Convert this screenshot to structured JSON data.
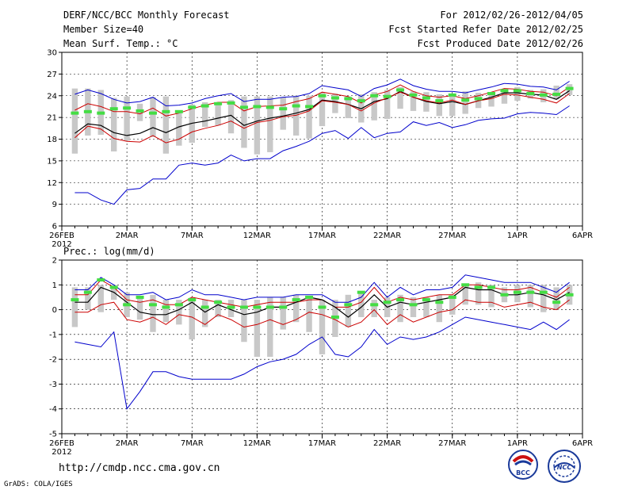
{
  "header": {
    "title": "DERF/NCC/BCC Monthly Forecast",
    "member_size": "Member Size=40",
    "variable_top": "Mean Surf. Temp.: °C",
    "period": "For 2012/02/26-2012/04/05",
    "refer_date": "Fcst Started Refer Date 2012/02/25",
    "produced_date": "Fcst Produced Date 2012/02/26"
  },
  "footer": {
    "url": "http://cmdp.ncc.cma.gov.cn",
    "grads": "GrADS: COLA/IGES"
  },
  "logos": {
    "bcc": "BCC",
    "ncc": "NCC"
  },
  "colors": {
    "max": "#0000cc",
    "min": "#0000cc",
    "upper": "#cc0000",
    "lower": "#cc0000",
    "mean": "#000000",
    "median": "#44dd44",
    "box": "#c8c8c8"
  },
  "chart_data": [
    {
      "type": "line",
      "title": "Mean Surf. Temp.: °C",
      "ylim": [
        6,
        30
      ],
      "yticks": [
        "6",
        "9",
        "12",
        "15",
        "18",
        "21",
        "24",
        "27",
        "30"
      ],
      "xticks": [
        "26FEB",
        "2MAR",
        "7MAR",
        "12MAR",
        "17MAR",
        "22MAR",
        "27MAR",
        "1APR",
        "6APR"
      ],
      "xtick_sub": "2012",
      "x_day_range": [
        0,
        40
      ],
      "x": [
        1,
        2,
        3,
        4,
        5,
        6,
        7,
        8,
        9,
        10,
        11,
        12,
        13,
        14,
        15,
        16,
        17,
        18,
        19,
        20,
        21,
        22,
        23,
        24,
        25,
        26,
        27,
        28,
        29,
        30,
        31,
        32,
        33,
        34,
        35,
        36,
        37,
        38,
        39
      ],
      "series": [
        {
          "name": "max",
          "values": [
            24.2,
            24.8,
            24.3,
            23.5,
            23,
            23.2,
            23.8,
            22.6,
            22.7,
            23,
            23.6,
            24,
            24.3,
            23.2,
            23.5,
            23.5,
            23.8,
            23.9,
            24.3,
            25.4,
            25.1,
            24.8,
            23.9,
            25,
            25.5,
            26.3,
            25.4,
            24.9,
            24.6,
            24.6,
            24.4,
            24.8,
            25.2,
            25.7,
            25.6,
            25.3,
            25.2,
            24.8,
            26
          ]
        },
        {
          "name": "upper",
          "values": [
            22,
            22.9,
            22.5,
            21.8,
            21.8,
            21.5,
            22.3,
            21.2,
            21.6,
            22.2,
            22.7,
            23.1,
            23.1,
            21.9,
            22.5,
            22.6,
            22.7,
            23.2,
            23.6,
            24.5,
            24.2,
            23.9,
            23,
            24.1,
            24.6,
            25.5,
            24.6,
            24,
            23.8,
            24,
            23.6,
            24,
            24.5,
            25,
            24.9,
            24.6,
            24.5,
            24,
            25.2
          ]
        },
        {
          "name": "mean",
          "values": [
            18.8,
            20.1,
            19.9,
            18.9,
            18.5,
            18.8,
            19.6,
            18.9,
            19.7,
            20.2,
            20.5,
            20.9,
            21.3,
            19.9,
            20.5,
            20.9,
            21.2,
            21.6,
            22.1,
            23.4,
            23.2,
            22.8,
            22.2,
            23.2,
            23.6,
            24.6,
            23.8,
            23.2,
            22.9,
            23.2,
            22.8,
            23.3,
            23.8,
            24.4,
            24.4,
            24.2,
            24.1,
            23.5,
            24.7
          ]
        },
        {
          "name": "lower",
          "values": [
            18.2,
            19.8,
            19.4,
            18.1,
            17.7,
            17.6,
            18.5,
            17.5,
            18,
            19,
            19.5,
            19.9,
            20.5,
            19.5,
            20.3,
            20.6,
            21.1,
            21.3,
            21.9,
            23.3,
            23.1,
            22.8,
            21.9,
            23,
            23.7,
            24.5,
            23.8,
            23.3,
            23,
            23.4,
            22.8,
            23.3,
            23.6,
            24.2,
            24.1,
            23.8,
            23.5,
            23,
            24.3
          ]
        },
        {
          "name": "min",
          "values": [
            10.6,
            10.6,
            9.6,
            9,
            11,
            11.2,
            12.5,
            12.5,
            14.4,
            14.7,
            14.4,
            14.7,
            15.8,
            15,
            15.3,
            15.3,
            16.4,
            17,
            17.7,
            18.8,
            19.2,
            18.1,
            19.6,
            18.2,
            18.8,
            19,
            20.4,
            19.9,
            20.3,
            19.6,
            20,
            20.6,
            20.8,
            20.9,
            21.5,
            21.7,
            21.6,
            21.4,
            22.6
          ]
        },
        {
          "name": "median",
          "values": [
            21.6,
            21.8,
            21.6,
            22.2,
            22.3,
            21.9,
            21.6,
            21.8,
            21.8,
            22.4,
            22.6,
            22.9,
            23,
            22.4,
            22.5,
            22.4,
            22.2,
            22.6,
            22.5,
            24,
            23.7,
            23.6,
            23.3,
            24,
            23.9,
            24.8,
            24.1,
            23.7,
            23.3,
            24.1,
            23.4,
            23.6,
            24.3,
            24.7,
            24.7,
            24.3,
            24.1,
            24.2,
            25
          ]
        }
      ],
      "box_low": [
        16,
        18.5,
        18.6,
        16.3,
        17.8,
        20.5,
        18.3,
        16,
        17.1,
        17.5,
        19.7,
        19.9,
        18.8,
        16.8,
        15.9,
        16.2,
        19.3,
        18.5,
        18.1,
        19.8,
        21.6,
        20.9,
        20.3,
        20.6,
        20.8,
        22.2,
        21.9,
        21.8,
        21.2,
        21.2,
        21.5,
        22.3,
        22.5,
        22.9,
        23.3,
        23.6,
        23.1,
        23.5,
        24.1
      ],
      "box_high": [
        25,
        25,
        24.8,
        23.7,
        23.9,
        22.9,
        23.8,
        23.9,
        22,
        22.8,
        23.1,
        23.1,
        23.4,
        23.9,
        23.9,
        23.9,
        23.8,
        24,
        24,
        24.4,
        24.3,
        23.9,
        24.2,
        24.5,
        24.8,
        25.2,
        24.6,
        24.5,
        24.2,
        24.1,
        24.6,
        24.4,
        24.3,
        24.8,
        25.2,
        24.8,
        24.9,
        25.4,
        25.6
      ]
    },
    {
      "type": "line",
      "title": "Prec.: log(mm/d)",
      "ylim": [
        -5,
        2
      ],
      "yticks": [
        "-5",
        "-4",
        "-3",
        "-2",
        "-1",
        "0",
        "1",
        "2"
      ],
      "xticks": [
        "26FEB",
        "2MAR",
        "7MAR",
        "12MAR",
        "17MAR",
        "22MAR",
        "27MAR",
        "1APR",
        "6APR"
      ],
      "xtick_sub": "2012",
      "x_day_range": [
        0,
        40
      ],
      "x": [
        1,
        2,
        3,
        4,
        5,
        6,
        7,
        8,
        9,
        10,
        11,
        12,
        13,
        14,
        15,
        16,
        17,
        18,
        19,
        20,
        21,
        22,
        23,
        24,
        25,
        26,
        27,
        28,
        29,
        30,
        31,
        32,
        33,
        34,
        35,
        36,
        37,
        38,
        39
      ],
      "series": [
        {
          "name": "max",
          "values": [
            0.8,
            0.8,
            1.3,
            1,
            0.6,
            0.6,
            0.7,
            0.4,
            0.5,
            0.8,
            0.6,
            0.6,
            0.5,
            0.4,
            0.5,
            0.5,
            0.5,
            0.6,
            0.6,
            0.6,
            0.3,
            0.3,
            0.5,
            1.1,
            0.5,
            0.9,
            0.6,
            0.8,
            0.8,
            0.9,
            1.4,
            1.3,
            1.2,
            1.1,
            1.1,
            1.1,
            0.9,
            0.7,
            1.1
          ]
        },
        {
          "name": "upper",
          "values": [
            0.6,
            0.6,
            1.2,
            0.9,
            0.4,
            0.3,
            0.4,
            0.2,
            0.2,
            0.5,
            0.4,
            0.3,
            0.2,
            0.1,
            0.2,
            0.3,
            0.3,
            0.3,
            0.4,
            0.4,
            0.1,
            0.1,
            0.3,
            0.9,
            0.3,
            0.5,
            0.4,
            0.5,
            0.6,
            0.6,
            1,
            1,
            0.9,
            0.8,
            0.8,
            0.9,
            0.7,
            0.5,
            0.9
          ]
        },
        {
          "name": "mean",
          "values": [
            0.3,
            0.3,
            0.9,
            0.7,
            0.3,
            -0.1,
            -0.2,
            -0.2,
            0,
            0.3,
            -0.1,
            0.2,
            0,
            -0.2,
            -0.1,
            0.1,
            0.1,
            0.3,
            0.5,
            0.4,
            0.1,
            -0.3,
            0.1,
            0.6,
            0.1,
            0.3,
            0.2,
            0.3,
            0.4,
            0.5,
            0.9,
            0.8,
            0.8,
            0.6,
            0.6,
            0.7,
            0.6,
            0.4,
            0.7
          ]
        },
        {
          "name": "lower",
          "values": [
            -0.1,
            -0.1,
            0.2,
            0.3,
            -0.4,
            -0.5,
            -0.3,
            -0.6,
            -0.2,
            -0.3,
            -0.6,
            -0.2,
            -0.4,
            -0.7,
            -0.6,
            -0.4,
            -0.6,
            -0.4,
            -0.1,
            -0.2,
            -0.4,
            -0.7,
            -0.5,
            0,
            -0.6,
            -0.2,
            -0.5,
            -0.3,
            -0.1,
            0,
            0.4,
            0.3,
            0.3,
            0.1,
            0.2,
            0.3,
            0.1,
            0,
            0.4
          ]
        },
        {
          "name": "min",
          "values": [
            -1.3,
            -1.4,
            -1.5,
            -0.9,
            -4,
            -3.3,
            -2.5,
            -2.5,
            -2.7,
            -2.8,
            -2.8,
            -2.8,
            -2.8,
            -2.6,
            -2.3,
            -2.1,
            -2,
            -1.8,
            -1.4,
            -1.1,
            -1.8,
            -1.9,
            -1.5,
            -0.8,
            -1.4,
            -1.1,
            -1.2,
            -1.1,
            -0.9,
            -0.6,
            -0.3,
            -0.4,
            -0.5,
            -0.6,
            -0.7,
            -0.8,
            -0.5,
            -0.8,
            -0.4
          ]
        },
        {
          "name": "median",
          "values": [
            0.4,
            0.7,
            1.2,
            0.9,
            0.2,
            0.5,
            0.2,
            0.1,
            0.2,
            0.4,
            0.1,
            0.3,
            0.1,
            0.1,
            0.1,
            0.1,
            0.1,
            0.4,
            0.5,
            0.1,
            -0.3,
            0.2,
            0.7,
            0.2,
            0.3,
            0.4,
            0.2,
            0.4,
            0.3,
            0.5,
            1,
            0.9,
            0.9,
            0.6,
            0.7,
            0.7,
            0.7,
            0.3,
            0.6
          ]
        }
      ],
      "box_low": [
        -0.7,
        0,
        -0.1,
        0.4,
        -0.3,
        -0.4,
        -0.9,
        -0.5,
        -0.6,
        -1.2,
        -0.7,
        -0.3,
        -0.3,
        -1.3,
        -1.9,
        -1.9,
        -0.8,
        -0.5,
        -0.9,
        -1.8,
        -1.1,
        -0.7,
        -0.3,
        -0.3,
        -0.3,
        -0.5,
        -0.3,
        -0.3,
        -0.5,
        -0.2,
        0.2,
        0.2,
        0.1,
        0.3,
        0.3,
        0.1,
        -0.1,
        0,
        0.2
      ],
      "box_high": [
        0.9,
        0.9,
        1,
        1,
        0.7,
        0.5,
        0.6,
        0.4,
        0.4,
        0.5,
        0.4,
        0.4,
        0.4,
        0.4,
        0.4,
        0.5,
        0.5,
        0.6,
        0.5,
        0.4,
        0.4,
        0.6,
        0.7,
        0.4,
        0.5,
        0.6,
        0.5,
        0.5,
        0.6,
        0.6,
        1,
        1.1,
        1,
        0.9,
        1,
        1,
        1,
        0.9,
        1
      ]
    }
  ]
}
